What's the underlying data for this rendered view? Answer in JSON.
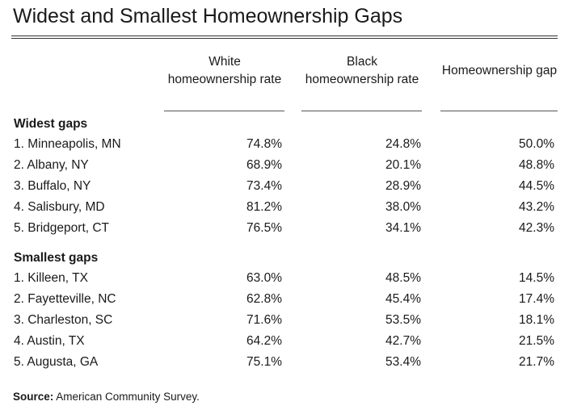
{
  "title": "Widest and Smallest Homeownership Gaps",
  "table": {
    "columns": [
      "White homeownership rate",
      "Black homeownership rate",
      "Homeownership gap"
    ],
    "sections": [
      {
        "name": "Widest gaps",
        "rows": [
          [
            "1. Minneapolis, MN",
            "74.8%",
            "24.8%",
            "50.0%"
          ],
          [
            "2. Albany, NY",
            "68.9%",
            "20.1%",
            "48.8%"
          ],
          [
            "3. Buffalo, NY",
            "73.4%",
            "28.9%",
            "44.5%"
          ],
          [
            "4. Salisbury, MD",
            "81.2%",
            "38.0%",
            "43.2%"
          ],
          [
            "5. Bridgeport, CT",
            "76.5%",
            "34.1%",
            "42.3%"
          ]
        ]
      },
      {
        "name": "Smallest gaps",
        "rows": [
          [
            "1. Killeen, TX",
            "63.0%",
            "48.5%",
            "14.5%"
          ],
          [
            "2. Fayetteville, NC",
            "62.8%",
            "45.4%",
            "17.4%"
          ],
          [
            "3. Charleston, SC",
            "71.6%",
            "53.5%",
            "18.1%"
          ],
          [
            "4. Austin, TX",
            "64.2%",
            "42.7%",
            "21.5%"
          ],
          [
            "5. Augusta, GA",
            "75.1%",
            "53.4%",
            "21.7%"
          ]
        ]
      }
    ]
  },
  "source": {
    "label": "Source:",
    "text": "American Community Survey."
  }
}
